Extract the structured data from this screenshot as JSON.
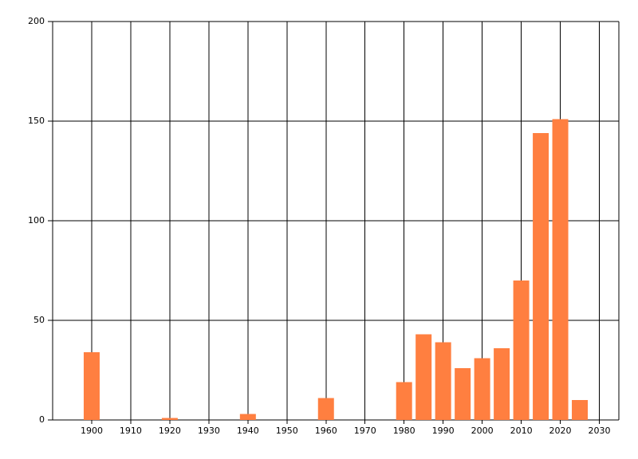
{
  "chart_data": {
    "type": "bar",
    "x": [
      1900,
      1920,
      1940,
      1960,
      1980,
      1985,
      1990,
      1995,
      2000,
      2005,
      2010,
      2015,
      2020,
      2025
    ],
    "values": [
      34,
      1,
      3,
      11,
      19,
      43,
      39,
      26,
      31,
      36,
      70,
      144,
      151,
      10
    ],
    "color": "#ff7f40",
    "xlim": [
      1890,
      2035
    ],
    "xticks": [
      1900,
      1910,
      1920,
      1930,
      1940,
      1950,
      1960,
      1970,
      1980,
      1990,
      2000,
      2010,
      2020,
      2030
    ],
    "ylim": [
      0,
      200
    ],
    "yticks": [
      0,
      50,
      100,
      150,
      200
    ],
    "grid": true
  }
}
